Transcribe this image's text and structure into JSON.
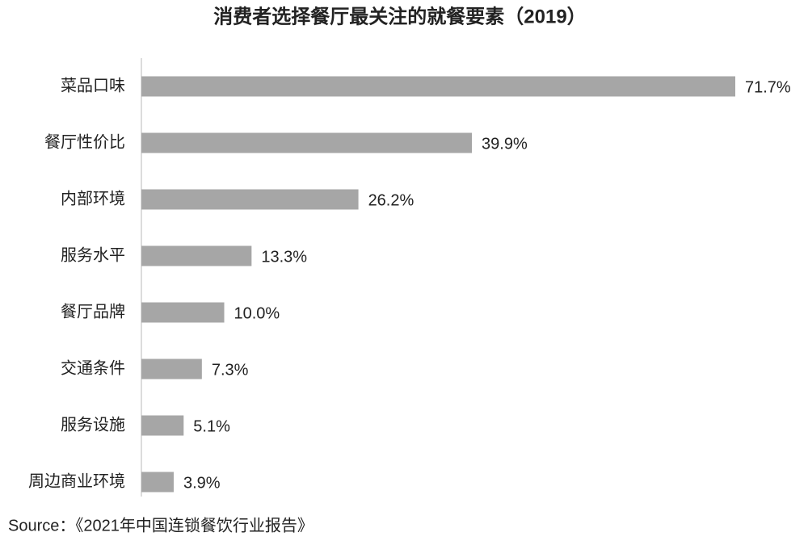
{
  "chart_data": {
    "type": "bar",
    "orientation": "horizontal",
    "title": "消费者选择餐厅最关注的就餐要素（2019）",
    "categories": [
      "菜品口味",
      "餐厅性价比",
      "内部环境",
      "服务水平",
      "餐厅品牌",
      "交通条件",
      "服务设施",
      "周边商业环境"
    ],
    "values": [
      71.7,
      39.9,
      26.2,
      13.3,
      10.0,
      7.3,
      5.1,
      3.9
    ],
    "value_labels": [
      "71.7%",
      "39.9%",
      "26.2%",
      "13.3%",
      "10.0%",
      "7.3%",
      "5.1%",
      "3.9%"
    ],
    "color": "#a6a6a6",
    "source": "Source：《2021年中国连锁餐饮行业报告》"
  }
}
